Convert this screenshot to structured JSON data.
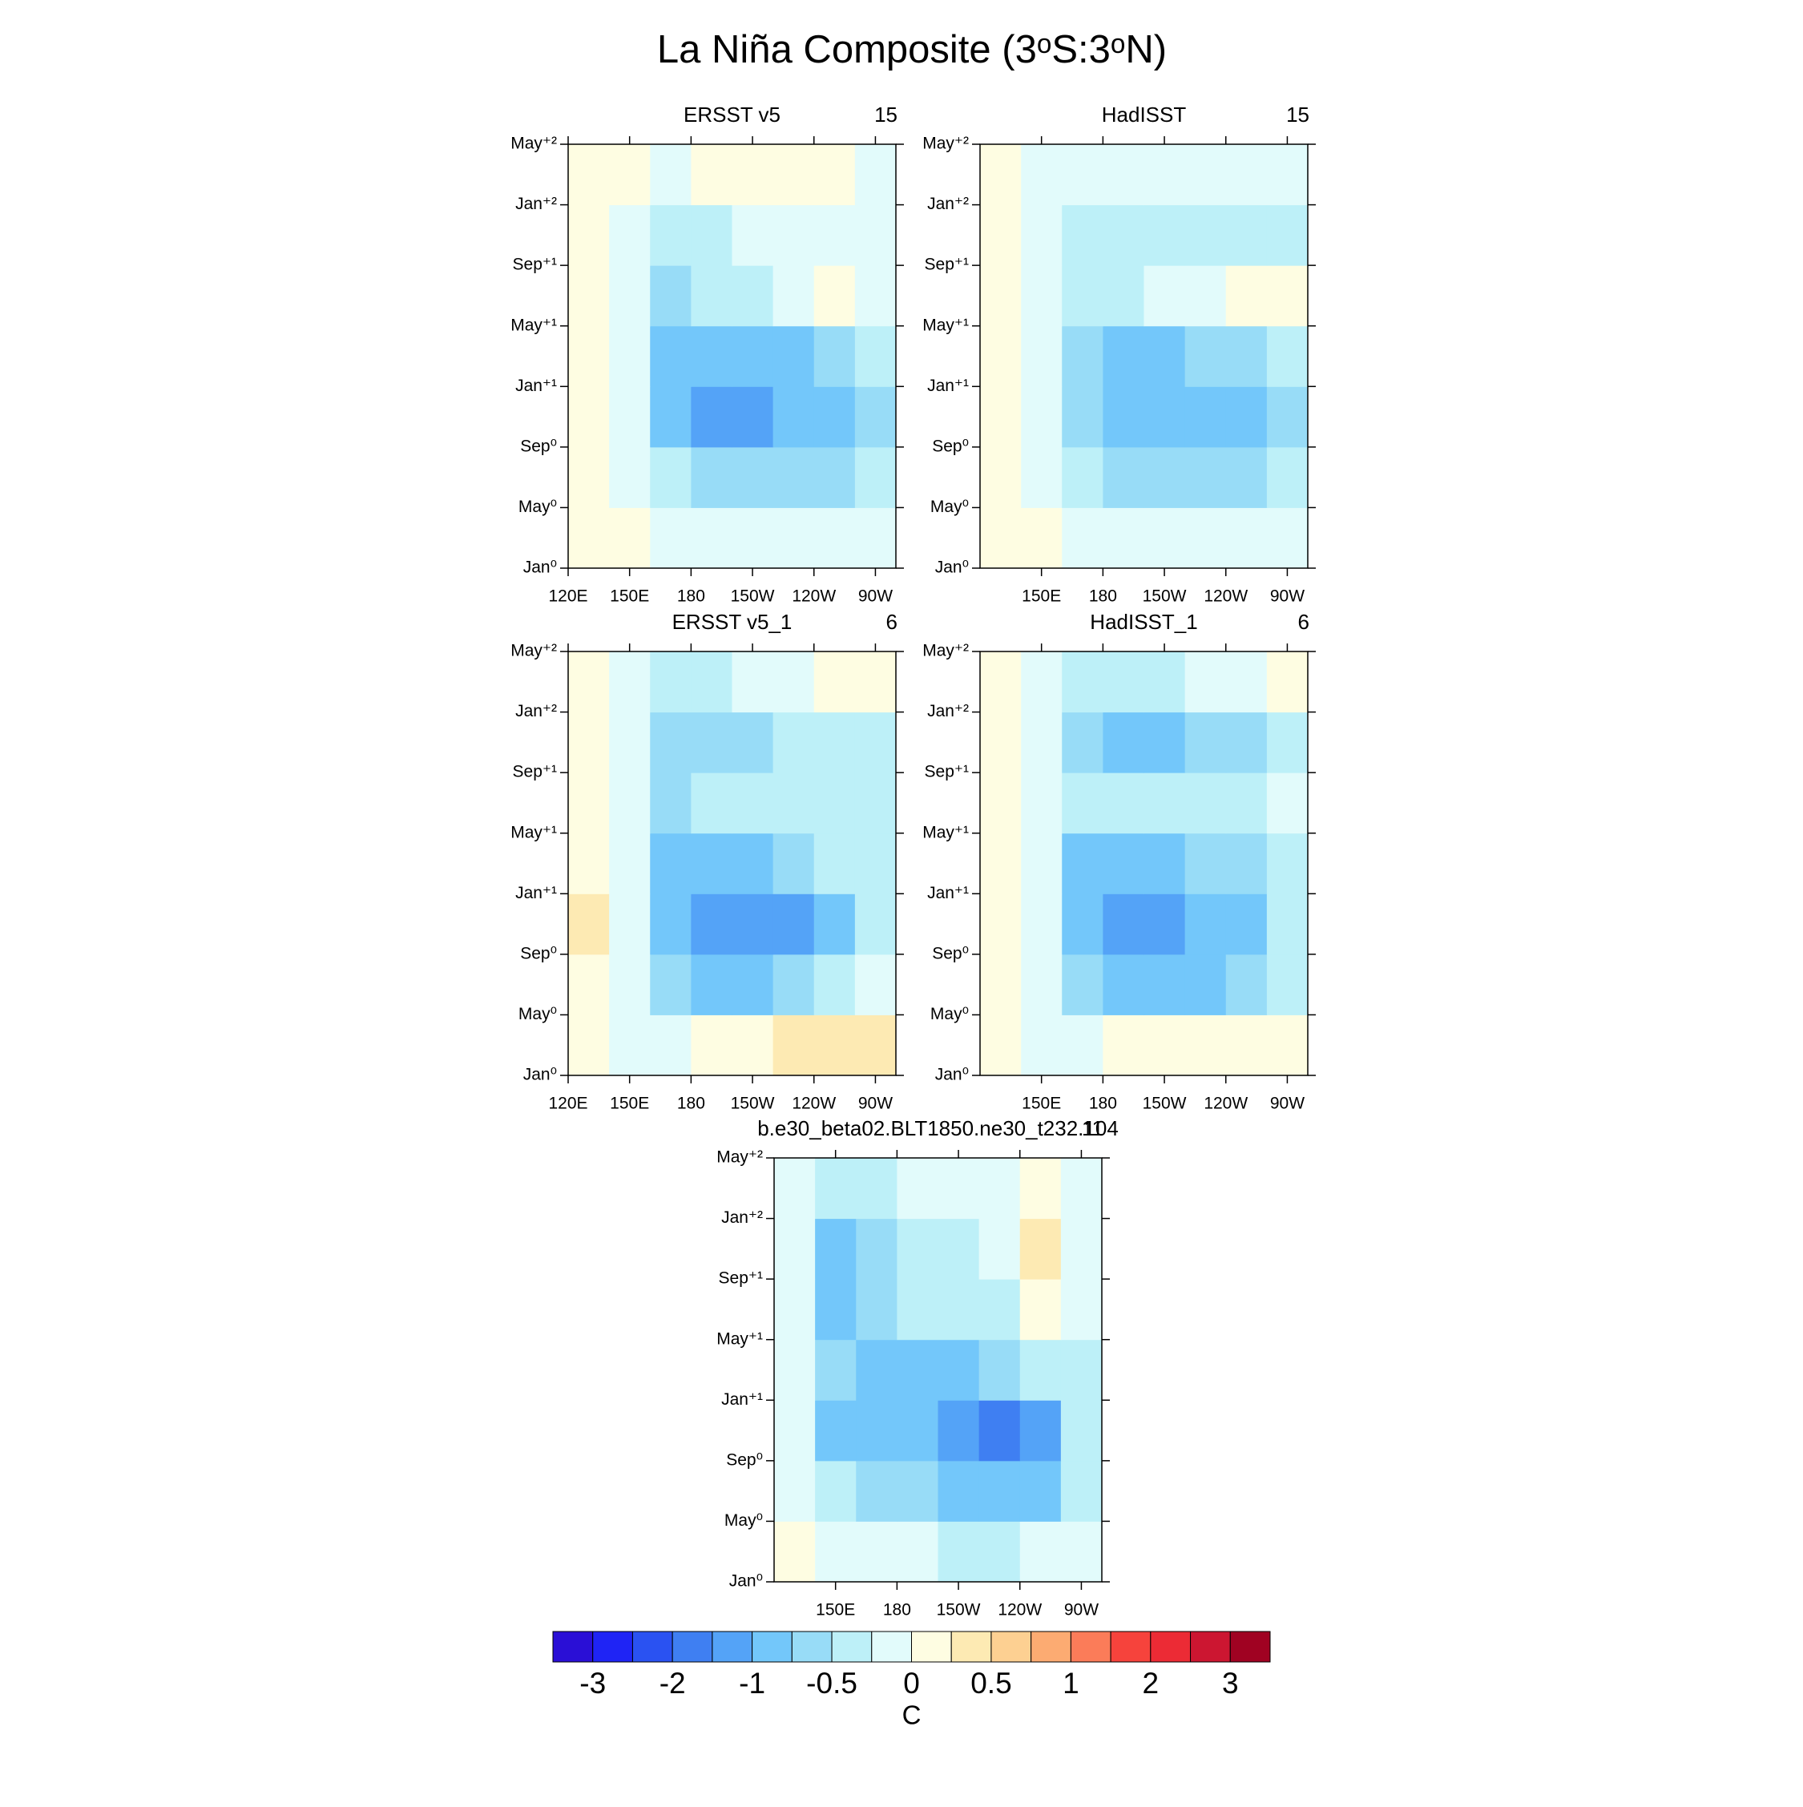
{
  "title": "La Niña Composite (3ᵒS:3ᵒN)",
  "chart_data": [
    {
      "type": "heatmap",
      "title": "ERSST v5",
      "right_title": "15",
      "x": [
        130,
        150,
        170,
        190,
        210,
        230,
        250,
        270
      ],
      "y": [
        2,
        6,
        10,
        14,
        18,
        22,
        26
      ],
      "values": [
        [
          0.1,
          0,
          -0.1,
          -0.15,
          -0.15,
          -0.15,
          -0.1,
          -0.05
        ],
        [
          0.1,
          -0.1,
          -0.5,
          -0.6,
          -0.7,
          -0.7,
          -0.6,
          -0.4
        ],
        [
          0.15,
          -0.2,
          -0.8,
          -1.1,
          -1.1,
          -1.0,
          -0.9,
          -0.6
        ],
        [
          0.1,
          -0.2,
          -0.8,
          -1.0,
          -0.9,
          -0.8,
          -0.6,
          -0.4
        ],
        [
          0,
          -0.1,
          -0.6,
          -0.5,
          -0.3,
          -0.2,
          0.1,
          -0.1
        ],
        [
          0.1,
          -0.1,
          -0.4,
          -0.3,
          -0.2,
          -0.2,
          -0.1,
          -0.1
        ],
        [
          0.1,
          0,
          -0.1,
          0,
          0.1,
          0.1,
          0.1,
          -0.1
        ]
      ],
      "xlim": [
        120,
        280
      ],
      "ylim": [
        0,
        28
      ],
      "xticks": [
        {
          "value": 120,
          "label": "120E"
        },
        {
          "value": 150,
          "label": "150E"
        },
        180,
        {
          "value": 210,
          "label": "150W"
        },
        {
          "value": 240,
          "label": "120W"
        },
        {
          "value": 270,
          "label": "90W"
        }
      ],
      "yticks": [
        {
          "value": 0,
          "label": "Jan⁰"
        },
        {
          "value": 4,
          "label": "May⁰"
        },
        {
          "value": 8,
          "label": "Sep⁰"
        },
        {
          "value": 12,
          "label": "Jan⁺¹"
        },
        {
          "value": 16,
          "label": "May⁺¹"
        },
        {
          "value": 20,
          "label": "Sep⁺¹"
        },
        {
          "value": 24,
          "label": "Jan⁺²"
        },
        {
          "value": 28,
          "label": "May⁺²"
        }
      ]
    },
    {
      "type": "heatmap",
      "title": "HadISST",
      "right_title": "15",
      "x": [
        130,
        150,
        170,
        190,
        210,
        230,
        250,
        270
      ],
      "y": [
        2,
        6,
        10,
        14,
        18,
        22,
        26
      ],
      "values": [
        [
          0.1,
          0,
          -0.1,
          -0.15,
          -0.15,
          -0.2,
          -0.15,
          -0.1
        ],
        [
          0.1,
          -0.2,
          -0.5,
          -0.6,
          -0.7,
          -0.7,
          -0.6,
          -0.4
        ],
        [
          0.1,
          -0.2,
          -0.7,
          -1.0,
          -1.0,
          -1.0,
          -0.8,
          -0.6
        ],
        [
          0.1,
          -0.1,
          -0.6,
          -0.8,
          -0.8,
          -0.7,
          -0.6,
          -0.4
        ],
        [
          0.05,
          -0.1,
          -0.3,
          -0.3,
          -0.2,
          -0.1,
          0.1,
          0.1
        ],
        [
          0.05,
          -0.1,
          -0.3,
          -0.4,
          -0.4,
          -0.3,
          -0.3,
          -0.3
        ],
        [
          0,
          -0.1,
          -0.2,
          -0.2,
          -0.2,
          -0.1,
          -0.1,
          -0.1
        ]
      ],
      "xlim": [
        120,
        280
      ],
      "ylim": [
        0,
        28
      ],
      "xticks": [
        {
          "value": 150,
          "label": "150E"
        },
        180,
        {
          "value": 210,
          "label": "150W"
        },
        {
          "value": 240,
          "label": "120W"
        },
        {
          "value": 270,
          "label": "90W"
        }
      ],
      "yticks": [
        {
          "value": 0,
          "label": "Jan⁰"
        },
        {
          "value": 4,
          "label": "May⁰"
        },
        {
          "value": 8,
          "label": "Sep⁰"
        },
        {
          "value": 12,
          "label": "Jan⁺¹"
        },
        {
          "value": 16,
          "label": "May⁺¹"
        },
        {
          "value": 20,
          "label": "Sep⁺¹"
        },
        {
          "value": 24,
          "label": "Jan⁺²"
        },
        {
          "value": 28,
          "label": "May⁺²"
        }
      ]
    },
    {
      "type": "heatmap",
      "title": "ERSST v5_1",
      "right_title": "6",
      "x": [
        130,
        150,
        170,
        190,
        210,
        230,
        250,
        270
      ],
      "y": [
        2,
        6,
        10,
        14,
        18,
        22,
        26
      ],
      "values": [
        [
          0.05,
          -0.05,
          -0.1,
          0.1,
          0.2,
          0.3,
          0.3,
          0.4
        ],
        [
          0.2,
          -0.1,
          -0.6,
          -0.8,
          -0.8,
          -0.7,
          -0.5,
          -0.1
        ],
        [
          0.3,
          -0.2,
          -0.9,
          -1.2,
          -1.2,
          -1.1,
          -0.8,
          -0.4
        ],
        [
          0.2,
          -0.2,
          -0.9,
          -0.9,
          -0.8,
          -0.7,
          -0.5,
          -0.3
        ],
        [
          0.1,
          -0.2,
          -0.7,
          -0.5,
          -0.4,
          -0.3,
          -0.3,
          -0.3
        ],
        [
          0.1,
          -0.2,
          -0.6,
          -0.6,
          -0.6,
          -0.5,
          -0.4,
          -0.3
        ],
        [
          0.1,
          -0.1,
          -0.4,
          -0.3,
          -0.2,
          -0.1,
          0.1,
          0
        ]
      ],
      "xlim": [
        120,
        280
      ],
      "ylim": [
        0,
        28
      ],
      "xticks": [
        {
          "value": 120,
          "label": "120E"
        },
        {
          "value": 150,
          "label": "150E"
        },
        180,
        {
          "value": 210,
          "label": "150W"
        },
        {
          "value": 240,
          "label": "120W"
        },
        {
          "value": 270,
          "label": "90W"
        }
      ],
      "yticks": [
        {
          "value": 0,
          "label": "Jan⁰"
        },
        {
          "value": 4,
          "label": "May⁰"
        },
        {
          "value": 8,
          "label": "Sep⁰"
        },
        {
          "value": 12,
          "label": "Jan⁺¹"
        },
        {
          "value": 16,
          "label": "May⁺¹"
        },
        {
          "value": 20,
          "label": "Sep⁺¹"
        },
        {
          "value": 24,
          "label": "Jan⁺²"
        },
        {
          "value": 28,
          "label": "May⁺²"
        }
      ]
    },
    {
      "type": "heatmap",
      "title": "HadISST_1",
      "right_title": "6",
      "x": [
        130,
        150,
        170,
        190,
        210,
        230,
        250,
        270
      ],
      "y": [
        2,
        6,
        10,
        14,
        18,
        22,
        26
      ],
      "values": [
        [
          0.1,
          -0.05,
          -0.1,
          0.1,
          0.1,
          0.2,
          0.2,
          0.2
        ],
        [
          0.1,
          -0.2,
          -0.6,
          -0.8,
          -0.8,
          -0.8,
          -0.7,
          -0.4
        ],
        [
          0.1,
          -0.2,
          -0.9,
          -1.1,
          -1.1,
          -1.0,
          -0.8,
          -0.5
        ],
        [
          0.1,
          -0.2,
          -0.8,
          -0.8,
          -0.8,
          -0.7,
          -0.6,
          -0.4
        ],
        [
          0.1,
          -0.1,
          -0.5,
          -0.4,
          -0.4,
          -0.4,
          -0.3,
          -0.2
        ],
        [
          0.1,
          -0.1,
          -0.6,
          -0.8,
          -0.8,
          -0.7,
          -0.6,
          -0.4
        ],
        [
          0,
          -0.1,
          -0.4,
          -0.3,
          -0.3,
          -0.2,
          -0.1,
          0.1
        ]
      ],
      "xlim": [
        120,
        280
      ],
      "ylim": [
        0,
        28
      ],
      "xticks": [
        {
          "value": 150,
          "label": "150E"
        },
        180,
        {
          "value": 210,
          "label": "150W"
        },
        {
          "value": 240,
          "label": "120W"
        },
        {
          "value": 270,
          "label": "90W"
        }
      ],
      "yticks": [
        {
          "value": 0,
          "label": "Jan⁰"
        },
        {
          "value": 4,
          "label": "May⁰"
        },
        {
          "value": 8,
          "label": "Sep⁰"
        },
        {
          "value": 12,
          "label": "Jan⁺¹"
        },
        {
          "value": 16,
          "label": "May⁺¹"
        },
        {
          "value": 20,
          "label": "Sep⁺¹"
        },
        {
          "value": 24,
          "label": "Jan⁺²"
        },
        {
          "value": 28,
          "label": "May⁺²"
        }
      ]
    },
    {
      "type": "heatmap",
      "title": "b.e30_beta02.BLT1850.ne30_t232.104",
      "right_title": "11",
      "x": [
        130,
        150,
        170,
        190,
        210,
        230,
        250,
        270
      ],
      "y": [
        2,
        6,
        10,
        14,
        18,
        22,
        26
      ],
      "values": [
        [
          0.1,
          -0.1,
          -0.2,
          -0.2,
          -0.3,
          -0.3,
          -0.2,
          -0.1
        ],
        [
          -0.1,
          -0.3,
          -0.6,
          -0.7,
          -0.8,
          -0.9,
          -0.8,
          -0.3
        ],
        [
          -0.2,
          -0.9,
          -1.0,
          -1.0,
          -1.1,
          -1.6,
          -1.4,
          -0.5
        ],
        [
          -0.2,
          -0.7,
          -0.8,
          -0.8,
          -0.8,
          -0.7,
          -0.5,
          -0.3
        ],
        [
          -0.2,
          -0.8,
          -0.7,
          -0.5,
          -0.4,
          -0.3,
          0,
          -0.2
        ],
        [
          -0.2,
          -0.8,
          -0.7,
          -0.5,
          -0.3,
          -0.1,
          0.3,
          -0.1
        ],
        [
          -0.1,
          -0.5,
          -0.4,
          -0.2,
          -0.1,
          -0.1,
          0.1,
          -0.1
        ]
      ],
      "xlim": [
        120,
        280
      ],
      "ylim": [
        0,
        28
      ],
      "xticks": [
        {
          "value": 150,
          "label": "150E"
        },
        180,
        {
          "value": 210,
          "label": "150W"
        },
        {
          "value": 240,
          "label": "120W"
        },
        {
          "value": 270,
          "label": "90W"
        }
      ],
      "yticks": [
        {
          "value": 0,
          "label": "Jan⁰"
        },
        {
          "value": 4,
          "label": "May⁰"
        },
        {
          "value": 8,
          "label": "Sep⁰"
        },
        {
          "value": 12,
          "label": "Jan⁺¹"
        },
        {
          "value": 16,
          "label": "May⁺¹"
        },
        {
          "value": 20,
          "label": "Sep⁺¹"
        },
        {
          "value": 24,
          "label": "Jan⁺²"
        },
        {
          "value": 28,
          "label": "May⁺²"
        }
      ]
    }
  ],
  "colorbar": {
    "label": "C",
    "levels": [
      -3,
      -2.5,
      -2,
      -1.5,
      -1,
      -0.75,
      -0.5,
      -0.25,
      0,
      0.25,
      0.5,
      0.75,
      1,
      1.5,
      2,
      2.5,
      3
    ],
    "colors": [
      "#2a0fd6",
      "#1f24f5",
      "#2a52f2",
      "#3f7ff2",
      "#54a3f7",
      "#73c7fa",
      "#98dcf7",
      "#bdf0f8",
      "#e2fbfb",
      "#fefde2",
      "#fdeab3",
      "#fdd092",
      "#fcab72",
      "#fb7c59",
      "#f6433c",
      "#ec2b35",
      "#cc1631",
      "#a00222"
    ],
    "ticks": [
      -3,
      -2,
      -1,
      -0.5,
      0,
      0.5,
      1,
      2,
      3
    ]
  }
}
